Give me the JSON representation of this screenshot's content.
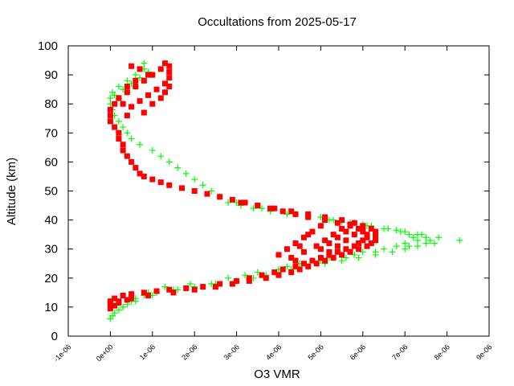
{
  "chart_data": {
    "type": "scatter",
    "title": "Occultations from 2025-05-17",
    "xlabel": "O3 VMR",
    "ylabel": "Altitude (km)",
    "xlim": [
      -1e-06,
      9e-06
    ],
    "ylim": [
      0,
      100
    ],
    "x_ticks": [
      -1e-06,
      0,
      1e-06,
      2e-06,
      3e-06,
      4e-06,
      5e-06,
      6e-06,
      7e-06,
      8e-06,
      9e-06
    ],
    "x_tick_labels": [
      "-1e-06",
      "0e+00",
      "1e-06",
      "2e-06",
      "3e-06",
      "4e-06",
      "5e-06",
      "6e-06",
      "7e-06",
      "8e-06",
      "9e-06"
    ],
    "y_ticks": [
      0,
      10,
      20,
      30,
      40,
      50,
      60,
      70,
      80,
      90,
      100
    ],
    "y_tick_labels": [
      "0",
      "10",
      "20",
      "30",
      "40",
      "50",
      "60",
      "70",
      "80",
      "90",
      "100"
    ],
    "grid": false,
    "series": [
      {
        "color": "#00ff00",
        "marker": "plus",
        "points": [
          [
            0.0,
            6
          ],
          [
            5e-08,
            7
          ],
          [
            1e-07,
            8
          ],
          [
            2e-07,
            9
          ],
          [
            3e-07,
            10
          ],
          [
            4e-07,
            11
          ],
          [
            5e-07,
            12
          ],
          [
            6e-07,
            13
          ],
          [
            8e-07,
            14
          ],
          [
            1.1e-06,
            15
          ],
          [
            1.5e-06,
            16
          ],
          [
            2e-06,
            17
          ],
          [
            2.5e-06,
            18
          ],
          [
            3e-06,
            19
          ],
          [
            3.4e-06,
            20
          ],
          [
            3.7e-06,
            21
          ],
          [
            4e-06,
            22
          ],
          [
            4.3e-06,
            23
          ],
          [
            4.7e-06,
            24
          ],
          [
            5.1e-06,
            25
          ],
          [
            5.5e-06,
            26
          ],
          [
            5.9e-06,
            27
          ],
          [
            6.3e-06,
            28
          ],
          [
            6.7e-06,
            29
          ],
          [
            7e-06,
            30
          ],
          [
            7.3e-06,
            31
          ],
          [
            7.5e-06,
            32
          ],
          [
            7.6e-06,
            33
          ],
          [
            7.5e-06,
            34
          ],
          [
            7.3e-06,
            35
          ],
          [
            7e-06,
            36
          ],
          [
            6.6e-06,
            37
          ],
          [
            6.2e-06,
            38
          ],
          [
            5.7e-06,
            39
          ],
          [
            5.2e-06,
            40
          ],
          [
            4.7e-06,
            41
          ],
          [
            4.2e-06,
            42
          ],
          [
            3.8e-06,
            43
          ],
          [
            3.4e-06,
            44
          ],
          [
            3.1e-06,
            45
          ],
          [
            2.8e-06,
            46
          ],
          [
            2.6e-06,
            48
          ],
          [
            2.4e-06,
            50
          ],
          [
            2.2e-06,
            52
          ],
          [
            2e-06,
            54
          ],
          [
            1.8e-06,
            56
          ],
          [
            1.6e-06,
            58
          ],
          [
            1.4e-06,
            60
          ],
          [
            1.2e-06,
            62
          ],
          [
            1e-06,
            64
          ],
          [
            7e-07,
            66
          ],
          [
            5e-07,
            68
          ],
          [
            4e-07,
            70
          ],
          [
            3e-07,
            72
          ],
          [
            2e-07,
            74
          ],
          [
            1e-07,
            76
          ],
          [
            5e-08,
            78
          ],
          [
            0.0,
            80
          ],
          [
            0.0,
            82
          ],
          [
            5e-08,
            84
          ],
          [
            2e-07,
            86
          ],
          [
            4e-07,
            88
          ],
          [
            6e-07,
            90
          ],
          [
            8e-07,
            92
          ],
          [
            8e-07,
            94
          ],
          [
            3e-07,
            10
          ],
          [
            5e-07,
            13
          ],
          [
            9e-07,
            15
          ],
          [
            1.3e-06,
            17
          ],
          [
            1.9e-06,
            18
          ],
          [
            2.8e-06,
            20
          ],
          [
            3.5e-06,
            22
          ],
          [
            4.2e-06,
            24
          ],
          [
            5e-06,
            26
          ],
          [
            5.8e-06,
            28
          ],
          [
            6.5e-06,
            30
          ],
          [
            7e-06,
            32
          ],
          [
            7.2e-06,
            34
          ],
          [
            6.9e-06,
            36
          ],
          [
            6.1e-06,
            38
          ],
          [
            5.3e-06,
            40
          ],
          [
            4.4e-06,
            42
          ],
          [
            3.6e-06,
            44
          ],
          [
            3e-06,
            46
          ],
          [
            6e-07,
            12
          ],
          [
            1e-06,
            14
          ],
          [
            1.6e-06,
            16
          ],
          [
            2.4e-06,
            18
          ],
          [
            3.2e-06,
            21
          ],
          [
            4e-06,
            23
          ],
          [
            4.9e-06,
            25
          ],
          [
            5.6e-06,
            27
          ],
          [
            6.3e-06,
            29
          ],
          [
            7.1e-06,
            31
          ],
          [
            7.7e-06,
            32
          ],
          [
            8.3e-06,
            33
          ],
          [
            7.8e-06,
            34
          ],
          [
            7.4e-06,
            35
          ],
          [
            6.8e-06,
            36.5
          ],
          [
            6e-06,
            38.5
          ],
          [
            5.5e-06,
            39.5
          ],
          [
            4.5e-06,
            25
          ],
          [
            5.2e-06,
            27
          ],
          [
            6e-06,
            29
          ],
          [
            6.8e-06,
            31
          ],
          [
            7.3e-06,
            33
          ],
          [
            7.1e-06,
            35
          ],
          [
            6.5e-06,
            37
          ],
          [
            5.8e-06,
            39
          ],
          [
            5e-06,
            41
          ],
          [
            2e-07,
            82
          ],
          [
            4e-07,
            84
          ],
          [
            6e-07,
            86
          ],
          [
            8e-07,
            88
          ],
          [
            1e-06,
            90
          ],
          [
            1e-07,
            83
          ],
          [
            3e-07,
            85
          ],
          [
            5e-07,
            87
          ],
          [
            7e-07,
            89
          ],
          [
            9e-07,
            91
          ]
        ]
      },
      {
        "color": "#ff0000",
        "marker": "square",
        "points": [
          [
            0.0,
            11
          ],
          [
            0.0,
            12
          ],
          [
            1e-07,
            13
          ],
          [
            3e-07,
            14
          ],
          [
            5e-07,
            14.5
          ],
          [
            8e-07,
            15
          ],
          [
            1.1e-06,
            15.5
          ],
          [
            1.4e-06,
            16
          ],
          [
            1.8e-06,
            16.5
          ],
          [
            2.2e-06,
            17
          ],
          [
            2.6e-06,
            18
          ],
          [
            3e-06,
            19
          ],
          [
            3.3e-06,
            20
          ],
          [
            3.6e-06,
            21
          ],
          [
            3.9e-06,
            22
          ],
          [
            4.1e-06,
            23
          ],
          [
            4.4e-06,
            24
          ],
          [
            4.6e-06,
            25
          ],
          [
            4.8e-06,
            26
          ],
          [
            5e-06,
            27
          ],
          [
            5.2e-06,
            28
          ],
          [
            5.4e-06,
            29
          ],
          [
            5.6e-06,
            30
          ],
          [
            5.8e-06,
            31
          ],
          [
            5.9e-06,
            32
          ],
          [
            6e-06,
            33
          ],
          [
            6.1e-06,
            34
          ],
          [
            6.1e-06,
            35
          ],
          [
            6e-06,
            36
          ],
          [
            5.9e-06,
            37
          ],
          [
            5.7e-06,
            38
          ],
          [
            5.4e-06,
            39
          ],
          [
            5.1e-06,
            40
          ],
          [
            4.7e-06,
            41
          ],
          [
            4.4e-06,
            42
          ],
          [
            4.1e-06,
            43
          ],
          [
            3.8e-06,
            44
          ],
          [
            3.5e-06,
            45
          ],
          [
            3.2e-06,
            46
          ],
          [
            2.9e-06,
            47
          ],
          [
            2.6e-06,
            48
          ],
          [
            2.3e-06,
            49
          ],
          [
            2e-06,
            50
          ],
          [
            1.7e-06,
            51
          ],
          [
            1.4e-06,
            52
          ],
          [
            1.2e-06,
            53
          ],
          [
            1e-06,
            54
          ],
          [
            8e-07,
            55
          ],
          [
            7e-07,
            56
          ],
          [
            6e-07,
            58
          ],
          [
            5e-07,
            60
          ],
          [
            4e-07,
            62
          ],
          [
            3e-07,
            64
          ],
          [
            3e-07,
            66
          ],
          [
            2e-07,
            68
          ],
          [
            2e-07,
            70
          ],
          [
            1e-07,
            72
          ],
          [
            0.0,
            74
          ],
          [
            0.0,
            76
          ],
          [
            0.0,
            78
          ],
          [
            1e-07,
            80
          ],
          [
            2e-07,
            82
          ],
          [
            4e-07,
            84
          ],
          [
            6e-07,
            86
          ],
          [
            8e-07,
            88
          ],
          [
            1e-06,
            90
          ],
          [
            1.2e-06,
            92
          ],
          [
            1.3e-06,
            94
          ],
          [
            2e-07,
            12
          ],
          [
            5e-07,
            13
          ],
          [
            9e-07,
            14
          ],
          [
            1.5e-06,
            15
          ],
          [
            2e-06,
            16
          ],
          [
            2.5e-06,
            17
          ],
          [
            2.9e-06,
            18
          ],
          [
            3.3e-06,
            19
          ],
          [
            3.7e-06,
            20
          ],
          [
            4e-06,
            21
          ],
          [
            4.3e-06,
            22
          ],
          [
            4.5e-06,
            23
          ],
          [
            4.7e-06,
            24
          ],
          [
            4.9e-06,
            25
          ],
          [
            5.1e-06,
            26
          ],
          [
            5.3e-06,
            27
          ],
          [
            5.5e-06,
            28
          ],
          [
            5.7e-06,
            29
          ],
          [
            5.9e-06,
            30
          ],
          [
            6.1e-06,
            31
          ],
          [
            6.2e-06,
            32
          ],
          [
            6.3e-06,
            33
          ],
          [
            6.3e-06,
            34
          ],
          [
            6.3e-06,
            35
          ],
          [
            6.3e-06,
            36
          ],
          [
            6.2e-06,
            37
          ],
          [
            6e-06,
            38
          ],
          [
            5.8e-06,
            39
          ],
          [
            5.5e-06,
            40
          ],
          [
            5.1e-06,
            41
          ],
          [
            4.7e-06,
            42
          ],
          [
            4.3e-06,
            43
          ],
          [
            3.9e-06,
            44
          ],
          [
            3.5e-06,
            45
          ],
          [
            3.1e-06,
            46
          ],
          [
            4e-06,
            28
          ],
          [
            4.2e-06,
            30
          ],
          [
            4.4e-06,
            32
          ],
          [
            4.6e-06,
            34
          ],
          [
            4.8e-06,
            36
          ],
          [
            5e-06,
            38
          ],
          [
            4.4e-06,
            26
          ],
          [
            4.6e-06,
            29
          ],
          [
            4.9e-06,
            31
          ],
          [
            5.1e-06,
            33
          ],
          [
            5.3e-06,
            35
          ],
          [
            5.5e-06,
            37
          ],
          [
            5.7e-06,
            38.5
          ],
          [
            4.3e-06,
            27
          ],
          [
            4.5e-06,
            31
          ],
          [
            4.7e-06,
            35
          ],
          [
            5.2e-06,
            29
          ],
          [
            5.4e-06,
            31
          ],
          [
            5.6e-06,
            33
          ],
          [
            5.8e-06,
            35
          ],
          [
            6e-06,
            37
          ],
          [
            5e-06,
            30
          ],
          [
            5.2e-06,
            32
          ],
          [
            5.4e-06,
            34
          ],
          [
            5.6e-06,
            36
          ],
          [
            4e-07,
            76
          ],
          [
            5e-07,
            79
          ],
          [
            7e-07,
            81
          ],
          [
            9e-07,
            83
          ],
          [
            1.1e-06,
            85
          ],
          [
            1.3e-06,
            87
          ],
          [
            1.4e-06,
            89
          ],
          [
            1.4e-06,
            91
          ],
          [
            1.4e-06,
            93
          ],
          [
            8e-07,
            77
          ],
          [
            1e-06,
            80
          ],
          [
            1.2e-06,
            82
          ],
          [
            1.3e-06,
            84
          ],
          [
            1.4e-06,
            86
          ],
          [
            5e-07,
            93
          ],
          [
            7e-07,
            92
          ],
          [
            9e-07,
            90
          ],
          [
            6e-07,
            88
          ],
          [
            4e-07,
            86
          ],
          [
            3e-07,
            80
          ],
          [
            0.0,
            9.5
          ],
          [
            1e-07,
            10.5
          ],
          [
            2e-07,
            11.5
          ],
          [
            4e-07,
            12.5
          ]
        ]
      }
    ]
  }
}
